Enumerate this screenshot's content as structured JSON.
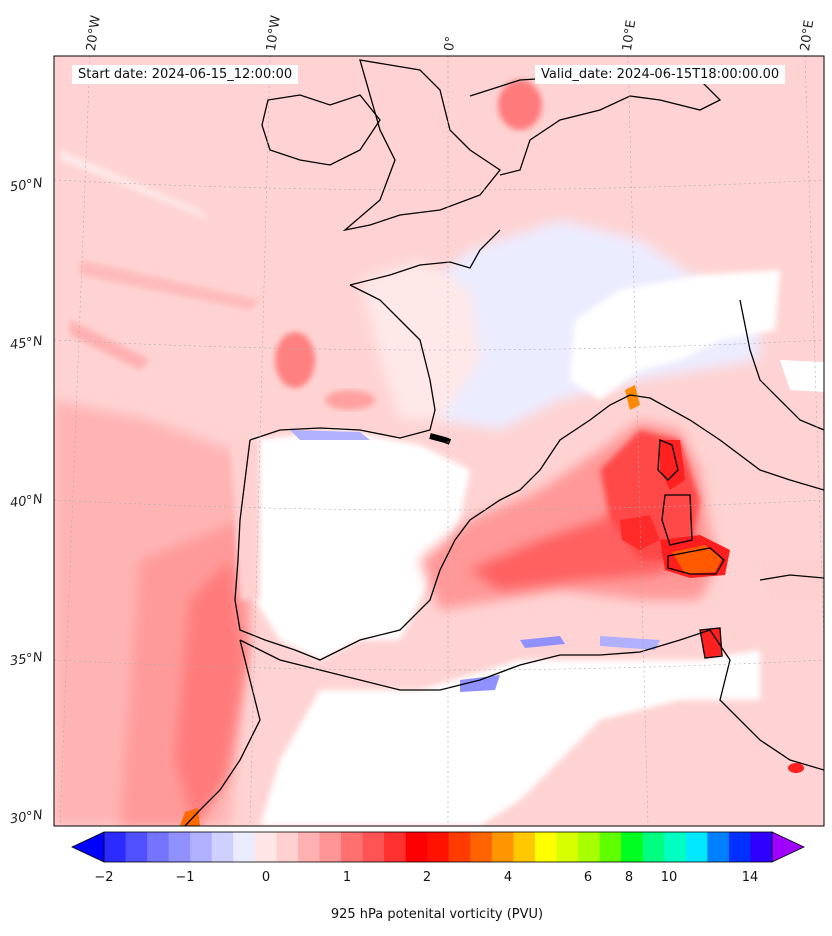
{
  "header": {
    "start_date": "Start date: 2024-06-15_12:00:00",
    "valid_date": "Valid_date: 2024-06-15T18:00:00.00"
  },
  "map": {
    "lon_labels": [
      "20°W",
      "10°W",
      "0°",
      "10°E",
      "20°E"
    ],
    "lat_labels": [
      "50°N",
      "45°N",
      "40°N",
      "35°N",
      "30°N"
    ],
    "field": "925 hPa potential vorticity",
    "colors": {
      "coast": "#000000",
      "ocean_bg": "#ffd7d7",
      "land_neutral": "#ffffff"
    }
  },
  "colorbar": {
    "label": "925 hPa potenital vorticity (PVU)",
    "tick_labels": [
      "−2",
      "−1",
      "0",
      "1",
      "2",
      "4",
      "6",
      "8",
      "10",
      "14"
    ],
    "colors": [
      "#0000ff",
      "#2b2bff",
      "#5050ff",
      "#7474ff",
      "#9090ff",
      "#b0b0ff",
      "#d0d0ff",
      "#ececff",
      "#ffe6e6",
      "#ffd0d0",
      "#ffb0b0",
      "#ff9494",
      "#ff7070",
      "#ff5454",
      "#ff3030",
      "#ff0000",
      "#ff1200",
      "#ff3c00",
      "#ff6400",
      "#ff9600",
      "#ffc800",
      "#ffff00",
      "#d8ff00",
      "#a8ff00",
      "#60ff00",
      "#00ff20",
      "#00ff80",
      "#00ffc0",
      "#00e8ff",
      "#0080ff",
      "#0030ff",
      "#3000ff",
      "#a000ff"
    ]
  }
}
